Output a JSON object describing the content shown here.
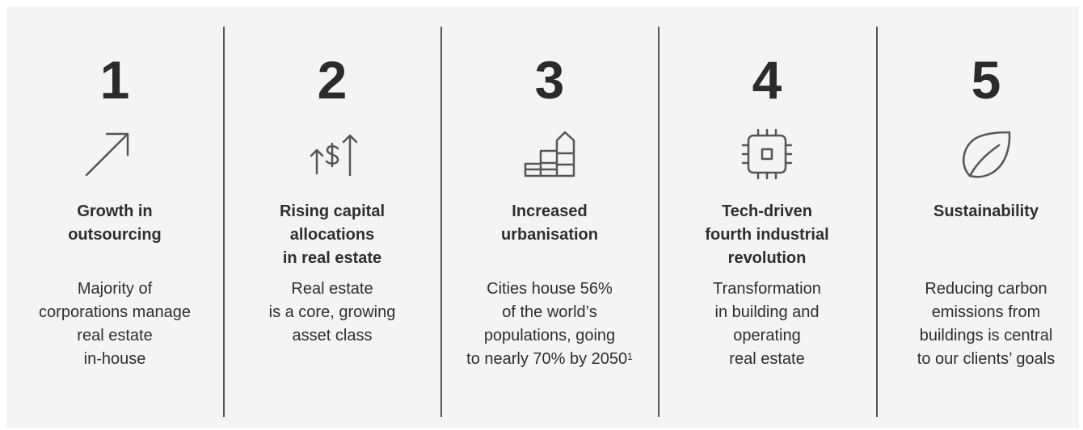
{
  "items": [
    {
      "number": "1",
      "title": [
        "Growth in",
        "outsourcing"
      ],
      "description": [
        "Majority of",
        "corporations manage",
        "real estate",
        "in-house"
      ]
    },
    {
      "number": "2",
      "title": [
        "Rising capital",
        "allocations",
        "in real estate"
      ],
      "description": [
        "Real estate",
        "is a core, growing",
        "asset class"
      ]
    },
    {
      "number": "3",
      "title": [
        "Increased",
        "urbanisation"
      ],
      "description": [
        "Cities house 56%",
        "of the world’s",
        "populations, going",
        "to nearly 70% by 2050"
      ],
      "footnote": "1"
    },
    {
      "number": "4",
      "title": [
        "Tech-driven",
        "fourth industrial",
        "revolution"
      ],
      "description": [
        "Transformation",
        "in building and",
        "operating",
        "real estate"
      ]
    },
    {
      "number": "5",
      "title": [
        "Sustainability"
      ],
      "description": [
        "Reducing carbon",
        "emissions from",
        "buildings is central",
        "to our clients’ goals"
      ]
    }
  ]
}
